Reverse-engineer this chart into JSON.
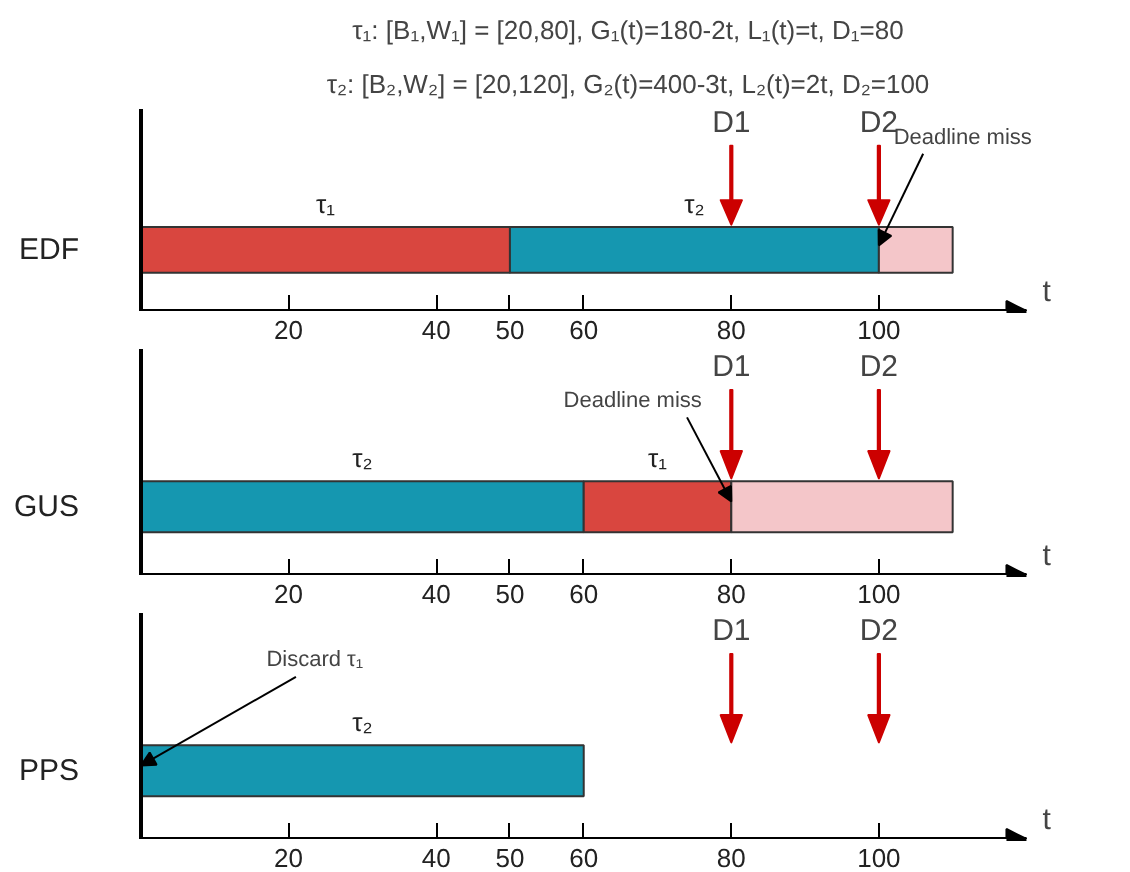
{
  "chart_data": [
    {
      "type": "bar",
      "orientation": "horizontal",
      "stacked": true,
      "title": "τ₁: [B₁,W₁] = [20,80], G₁(t)=180-2t, L₁(t)=t, D₁=80",
      "subtitle": "τ₂: [B₂,W₂] = [20,120], G₂(t)=400-3t, L₂(t)=2t, D₂=100",
      "categories": [
        "EDF"
      ],
      "series": [
        {
          "name": "τ₁",
          "color": "#d9463f",
          "values": [
            50
          ]
        },
        {
          "name": "τ₂",
          "color": "#1597b0",
          "values": [
            50
          ]
        },
        {
          "color": "#f4c6c9",
          "values": [
            10
          ]
        }
      ],
      "xlim": [
        0,
        120
      ],
      "xticks": [
        20,
        40,
        50,
        60,
        80,
        100
      ],
      "xlabel": "t",
      "grid": false,
      "ref_lines": [
        {
          "axis": "x",
          "value": 80,
          "label": "D1",
          "color": "#cc0000"
        },
        {
          "axis": "x",
          "value": 100,
          "label": "D2",
          "color": "#cc0000"
        }
      ],
      "annotations": [
        {
          "text": "Deadline miss",
          "x": 100,
          "y": "EDF"
        }
      ]
    },
    {
      "type": "bar",
      "orientation": "horizontal",
      "stacked": true,
      "categories": [
        "GUS"
      ],
      "series": [
        {
          "name": "τ₂",
          "color": "#1597b0",
          "values": [
            60
          ]
        },
        {
          "name": "τ₁",
          "color": "#d9463f",
          "values": [
            20
          ]
        },
        {
          "color": "#f4c6c9",
          "values": [
            30
          ]
        }
      ],
      "xlim": [
        0,
        120
      ],
      "xticks": [
        20,
        40,
        50,
        60,
        80,
        100
      ],
      "xlabel": "t",
      "grid": false,
      "ref_lines": [
        {
          "axis": "x",
          "value": 80,
          "label": "D1",
          "color": "#cc0000"
        },
        {
          "axis": "x",
          "value": 100,
          "label": "D2",
          "color": "#cc0000"
        }
      ],
      "annotations": [
        {
          "text": "Deadline miss",
          "x": 80,
          "y": "GUS"
        }
      ]
    },
    {
      "type": "bar",
      "orientation": "horizontal",
      "stacked": true,
      "categories": [
        "PPS"
      ],
      "series": [
        {
          "name": "τ₂",
          "color": "#1597b0",
          "values": [
            60
          ]
        }
      ],
      "xlim": [
        0,
        120
      ],
      "xticks": [
        20,
        40,
        50,
        60,
        80,
        100
      ],
      "xlabel": "t",
      "grid": false,
      "ref_lines": [
        {
          "axis": "x",
          "value": 80,
          "label": "D1",
          "color": "#cc0000"
        },
        {
          "axis": "x",
          "value": 100,
          "label": "D2",
          "color": "#cc0000"
        }
      ],
      "annotations": [
        {
          "text": "Discard τ₁",
          "x": 0,
          "y": "PPS"
        }
      ]
    }
  ]
}
